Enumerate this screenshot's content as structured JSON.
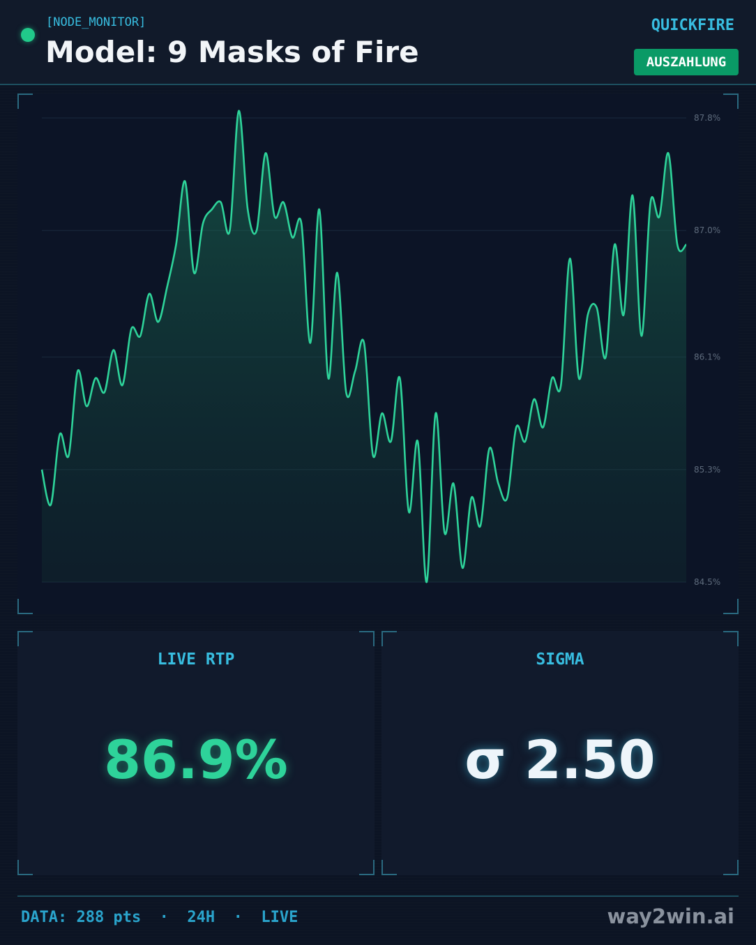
{
  "header": {
    "node_label": "[NODE_MONITOR]",
    "title": "Model: 9 Masks of Fire",
    "provider": "QUICKFIRE",
    "payout_button": "AUSZAHLUNG"
  },
  "colors": {
    "accent": "#38bde0",
    "line": "#2ed39a",
    "button": "#0a9a66",
    "background": "#0c1424"
  },
  "chart_data": {
    "type": "line",
    "title": "",
    "xlabel": "",
    "ylabel": "",
    "ylim": [
      84.5,
      87.8
    ],
    "yticks": [
      "87.8%",
      "87.0%",
      "86.1%",
      "85.3%",
      "84.5%"
    ],
    "ytick_values": [
      87.8,
      87.0,
      86.1,
      85.3,
      84.5
    ],
    "grid": true,
    "series": [
      {
        "values": [
          85.3,
          85.05,
          85.55,
          85.4,
          86.0,
          85.75,
          85.95,
          85.85,
          86.15,
          85.9,
          86.3,
          86.25,
          86.55,
          86.35,
          86.6,
          86.9,
          87.35,
          86.7,
          87.05,
          87.15,
          87.2,
          87.0,
          87.85,
          87.15,
          87.0,
          87.55,
          87.1,
          87.2,
          86.95,
          87.05,
          86.2,
          87.15,
          85.95,
          86.7,
          85.85,
          86.0,
          86.2,
          85.4,
          85.7,
          85.5,
          85.95,
          85.0,
          85.5,
          84.5,
          85.7,
          84.85,
          85.2,
          84.6,
          85.1,
          84.9,
          85.45,
          85.2,
          85.1,
          85.6,
          85.5,
          85.8,
          85.6,
          85.95,
          85.9,
          86.8,
          85.95,
          86.4,
          86.45,
          86.1,
          86.9,
          86.4,
          87.25,
          86.25,
          87.2,
          87.1,
          87.55,
          86.9,
          86.9
        ]
      }
    ]
  },
  "stats": {
    "rtp_label": "LIVE RTP",
    "rtp_value": "86.9%",
    "sigma_label": "SIGMA",
    "sigma_value": "σ 2.50"
  },
  "footer": {
    "data_info": "DATA: 288 pts  ·  24H  ·  LIVE",
    "brand": "way2win.ai"
  }
}
